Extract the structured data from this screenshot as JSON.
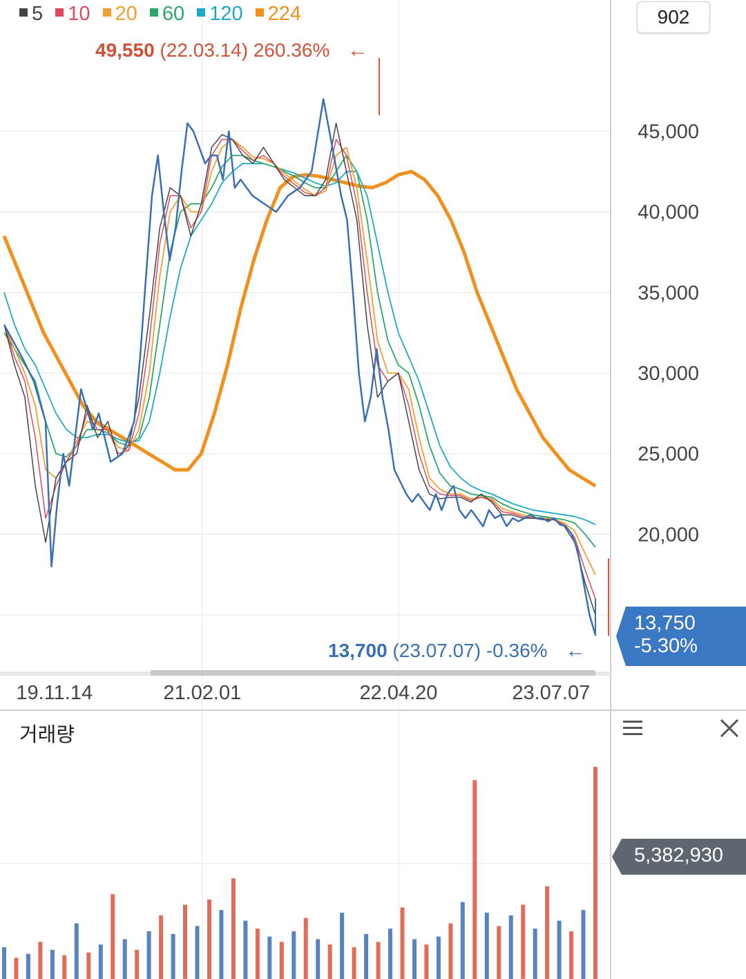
{
  "legend": [
    {
      "label": "5",
      "color": "#444444"
    },
    {
      "label": "10",
      "color": "#e0475f"
    },
    {
      "label": "20",
      "color": "#f0a030"
    },
    {
      "label": "60",
      "color": "#2aa86a"
    },
    {
      "label": "120",
      "color": "#1ea8c8"
    },
    {
      "label": "224",
      "color": "#f0901e"
    }
  ],
  "count_box": "902",
  "high_annotation": {
    "price": "49,550",
    "date": "(22.03.14)",
    "change": "260.36%",
    "arrow": "←"
  },
  "low_annotation": {
    "price": "13,700",
    "date": "(23.07.07)",
    "change": "-0.36%",
    "arrow": "←"
  },
  "current_price": {
    "price": "13,750",
    "change": "-5.30%"
  },
  "volume_panel": {
    "title": "거래량",
    "current_volume": "5,382,930"
  },
  "colors": {
    "up": "#d9543b",
    "down": "#3a6fb3",
    "price_tag": "#3a78c4",
    "volume_tag": "#5e6670",
    "grid": "#e6e6e6"
  },
  "chart_data": {
    "type": "line",
    "title": "",
    "y_axis": {
      "ticks": [
        "45,000",
        "40,000",
        "35,000",
        "30,000",
        "25,000",
        "20,000"
      ],
      "values": [
        45000,
        40000,
        35000,
        30000,
        25000,
        20000
      ],
      "ylim": [
        13000,
        52000
      ],
      "side": "right"
    },
    "x_axis": {
      "ticks": [
        "19.11.14",
        "21.02.01",
        "22.04.20",
        "23.07.07"
      ]
    },
    "grid": true,
    "price_series": {
      "name": "price",
      "x": [
        0,
        0.03,
        0.05,
        0.07,
        0.08,
        0.09,
        0.1,
        0.11,
        0.13,
        0.15,
        0.16,
        0.18,
        0.2,
        0.22,
        0.23,
        0.24,
        0.25,
        0.26,
        0.27,
        0.28,
        0.29,
        0.3,
        0.31,
        0.32,
        0.33,
        0.34,
        0.35,
        0.36,
        0.37,
        0.38,
        0.39,
        0.4,
        0.42,
        0.44,
        0.46,
        0.48,
        0.5,
        0.52,
        0.54,
        0.56,
        0.57,
        0.58,
        0.59,
        0.6,
        0.61,
        0.62,
        0.63,
        0.64,
        0.65,
        0.66,
        0.68,
        0.69,
        0.7,
        0.71,
        0.72,
        0.73,
        0.74,
        0.75,
        0.76,
        0.77,
        0.78,
        0.79,
        0.8,
        0.81,
        0.82,
        0.83,
        0.84,
        0.85,
        0.86,
        0.87,
        0.88,
        0.89,
        0.9,
        0.91,
        0.92,
        0.93,
        0.94,
        0.95,
        0.96,
        0.97,
        0.98,
        0.99,
        1.0
      ],
      "values": [
        33000,
        31000,
        29500,
        27000,
        18000,
        22000,
        25000,
        23000,
        29000,
        26500,
        27500,
        24500,
        25000,
        27000,
        31000,
        36000,
        41000,
        43500,
        40000,
        37000,
        39000,
        42500,
        45500,
        45000,
        44000,
        43000,
        43500,
        43500,
        42000,
        45000,
        41500,
        42000,
        41000,
        40500,
        40000,
        41000,
        41500,
        42500,
        47000,
        43000,
        41000,
        39500,
        35000,
        30000,
        27000,
        28500,
        31500,
        28500,
        26500,
        24000,
        22500,
        22000,
        22500,
        22000,
        21500,
        22500,
        21500,
        22500,
        23000,
        21500,
        21000,
        21500,
        21000,
        20500,
        21500,
        21000,
        21200,
        20500,
        21000,
        20800,
        21000,
        21200,
        21000,
        21000,
        20800,
        21000,
        20600,
        20500,
        20000,
        19000,
        17000,
        15000,
        13750
      ]
    },
    "moving_averages": [
      {
        "name": "5",
        "values": [
          33000,
          30500,
          28500,
          23000,
          19500,
          23500,
          24500,
          25000,
          28000,
          26000,
          27000,
          24800,
          25500,
          28500,
          33500,
          39000,
          41500,
          41000,
          38500,
          40500,
          44000,
          44800,
          44500,
          43500,
          43000,
          44000,
          43000,
          42000,
          41500,
          41000,
          41000,
          42000,
          45500,
          42500,
          39500,
          33000,
          28500,
          29500,
          30000,
          27000,
          24000,
          22500,
          22200,
          22300,
          22300,
          22000,
          22500,
          22000,
          21200,
          21200,
          21000,
          21000,
          20900,
          20900,
          20500,
          19500,
          17000,
          15000
        ]
      },
      {
        "name": "10",
        "values": [
          33000,
          31000,
          29500,
          26000,
          21000,
          23000,
          24500,
          25500,
          27500,
          26500,
          26500,
          25000,
          25200,
          27500,
          32000,
          38000,
          41000,
          41000,
          39000,
          40000,
          43500,
          44500,
          44500,
          43800,
          43200,
          43500,
          43000,
          42200,
          41700,
          41200,
          41000,
          41500,
          44500,
          43500,
          40500,
          35000,
          30500,
          29500,
          30000,
          28000,
          25000,
          23000,
          22500,
          22400,
          22400,
          22100,
          22300,
          22100,
          21400,
          21300,
          21100,
          21000,
          20950,
          20900,
          20600,
          19800,
          17800,
          16000
        ]
      },
      {
        "name": "20",
        "values": [
          33000,
          31500,
          30000,
          28000,
          24000,
          23500,
          24500,
          25800,
          27000,
          26800,
          26400,
          25400,
          25200,
          26500,
          30000,
          36000,
          40000,
          41000,
          40000,
          40000,
          42500,
          44000,
          44500,
          44000,
          43400,
          43300,
          43000,
          42400,
          41900,
          41400,
          41000,
          41300,
          43500,
          44000,
          41500,
          37000,
          32000,
          30000,
          30000,
          29000,
          26000,
          23500,
          22800,
          22500,
          22500,
          22200,
          22300,
          22200,
          21600,
          21400,
          21200,
          21050,
          21000,
          20950,
          20700,
          20200,
          18800,
          17500
        ]
      },
      {
        "name": "60",
        "values": [
          32500,
          31500,
          30500,
          29500,
          27000,
          25000,
          24800,
          25500,
          26500,
          26500,
          26300,
          25700,
          25500,
          26000,
          28500,
          33000,
          37500,
          40000,
          40500,
          40500,
          41500,
          42800,
          43500,
          43500,
          43200,
          43000,
          42800,
          42500,
          42200,
          41800,
          41500,
          41500,
          42500,
          43500,
          42500,
          39500,
          35000,
          32000,
          30500,
          30000,
          28000,
          25500,
          23800,
          23000,
          22800,
          22500,
          22400,
          22300,
          21900,
          21600,
          21400,
          21200,
          21100,
          21000,
          20900,
          20700,
          20000,
          19200
        ]
      },
      {
        "name": "120",
        "values": [
          35000,
          33000,
          31500,
          30500,
          29000,
          27500,
          26500,
          26000,
          26000,
          26200,
          26200,
          25900,
          25700,
          25800,
          27000,
          30000,
          33500,
          36500,
          38500,
          39500,
          40500,
          41800,
          42500,
          43000,
          43000,
          43000,
          42800,
          42600,
          42400,
          42100,
          41800,
          41600,
          41800,
          42500,
          42500,
          41000,
          38000,
          35000,
          32500,
          31000,
          29500,
          27500,
          25500,
          24200,
          23500,
          23000,
          22700,
          22500,
          22200,
          21900,
          21700,
          21500,
          21400,
          21300,
          21200,
          21100,
          20900,
          20600
        ]
      },
      {
        "name": "224",
        "values": [
          38500,
          36500,
          34500,
          32500,
          31000,
          29500,
          28000,
          27000,
          26500,
          26000,
          25500,
          25000,
          24500,
          24000,
          24000,
          25000,
          27500,
          30500,
          34000,
          37000,
          39500,
          41500,
          42200,
          42300,
          42200,
          42000,
          41800,
          41600,
          41500,
          41800,
          42300,
          42500,
          42000,
          41000,
          39500,
          37500,
          35000,
          33000,
          31000,
          29000,
          27500,
          26000,
          25000,
          24000,
          23500,
          23000
        ]
      }
    ],
    "annotations": [
      {
        "type": "high",
        "value": 49550,
        "date": "22.03.14",
        "change_pct": 260.36
      },
      {
        "type": "low",
        "value": 13700,
        "date": "23.07.07",
        "change_pct": -0.36
      }
    ],
    "current": {
      "value": 13750,
      "change_pct": -5.3
    },
    "volume": {
      "label": "거래량",
      "current": 5382930,
      "values": [
        1200000,
        800000,
        950000,
        1400000,
        1100000,
        900000,
        2100000,
        1000000,
        1300000,
        3200000,
        1500000,
        1100000,
        1800000,
        2400000,
        1700000,
        2800000,
        2000000,
        3000000,
        2600000,
        3800000,
        2200000,
        1900000,
        1600000,
        1400000,
        1800000,
        2300000,
        1500000,
        1300000,
        2500000,
        1200000,
        1700000,
        1400000,
        1900000,
        2700000,
        1500000,
        1300000,
        1600000,
        2100000,
        2900000,
        7500000,
        2500000,
        2000000,
        2400000,
        2800000,
        1900000,
        3500000,
        2200000,
        1800000,
        2600000,
        8000000
      ]
    }
  }
}
